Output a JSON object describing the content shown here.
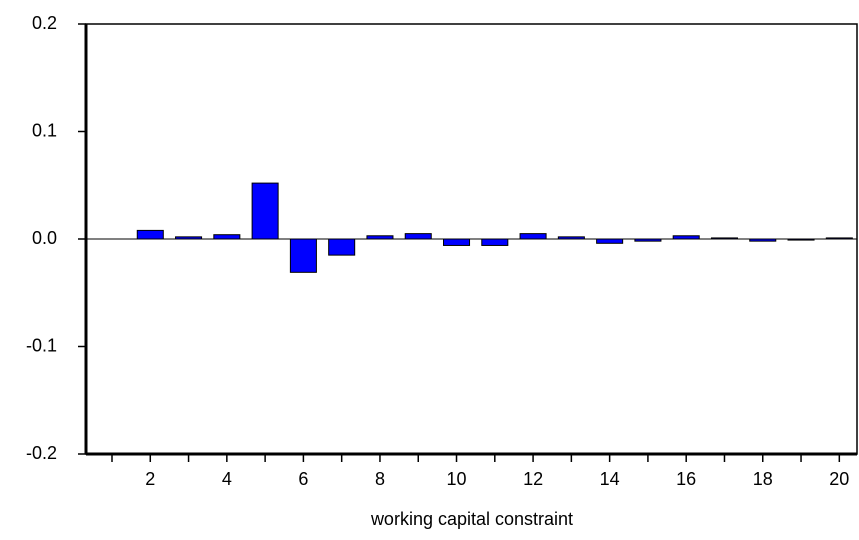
{
  "chart_data": {
    "type": "bar",
    "x_label": "working capital constraint",
    "categories": [
      null,
      "2",
      null,
      "4",
      null,
      "6",
      null,
      "8",
      null,
      "10",
      null,
      "12",
      null,
      "14",
      null,
      "16",
      null,
      "18",
      null,
      "20"
    ],
    "values": [
      0,
      0.008,
      0.002,
      0.004,
      0.052,
      -0.031,
      -0.015,
      0.003,
      0.005,
      -0.006,
      -0.006,
      0.005,
      0.002,
      -0.004,
      -0.002,
      0.003,
      0.001,
      -0.002,
      -0.001,
      0.001
    ],
    "color": "#0000ff",
    "ylim": [
      -0.2,
      0.2
    ],
    "yticks": [
      -0.2,
      -0.1,
      {
        "value": 0,
        "label": "0.0"
      },
      0.1,
      0.2
    ],
    "grid": false
  }
}
